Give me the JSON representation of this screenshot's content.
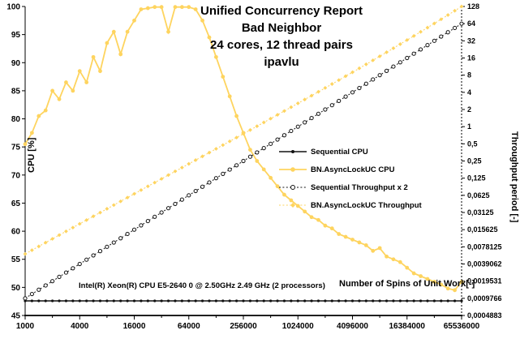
{
  "chart_data": {
    "type": "line",
    "title_lines": [
      "Unified Concurrency Report",
      "Bad Neighbor",
      "24 cores, 12 thread pairs",
      "ipavlu"
    ],
    "xlabel": "Number of Spins of Unit Work[-]",
    "ylabel_left": "CPU [%]",
    "ylabel_right": "Throughput period [-]",
    "annotation": "Intel(R) Xeon(R) CPU E5-2640 0 @ 2.50GHz  2.49 GHz  (2 processors)",
    "x_scale": "log",
    "x_range": [
      1000,
      65536000
    ],
    "y_left_range": [
      45,
      100
    ],
    "y_left_ticks": [
      45,
      50,
      55,
      60,
      65,
      70,
      75,
      80,
      85,
      90,
      95,
      100
    ],
    "y_right_ticks": [
      "128",
      "64",
      "32",
      "16",
      "8",
      "4",
      "2",
      "1",
      "0,5",
      "0,25",
      "0,125",
      "0,0625",
      "0,03125",
      "0,015625",
      "0,0078125",
      "0,0039062",
      "0,0019531",
      "0,0009766",
      "0,0004883"
    ],
    "x_ticks": [
      "1000",
      "4000",
      "16000",
      "64000",
      "256000",
      "1024000",
      "4096000",
      "16384000",
      "65536000"
    ],
    "grid": false,
    "legend_position": "middle-right",
    "colors": {
      "sequential": "#111111",
      "async": "#fed45f"
    },
    "x_values": [
      1000,
      1189,
      1414,
      1682,
      2000,
      2378,
      2828,
      3364,
      4000,
      4757,
      5657,
      6727,
      8000,
      9514,
      11314,
      13454,
      16000,
      19027,
      22627,
      26909,
      32000,
      38055,
      45255,
      53817,
      64000,
      76109,
      90510,
      107635,
      128000,
      152219,
      181019,
      215269,
      256000,
      304437,
      362039,
      430539,
      512000,
      608874,
      724077,
      861078,
      1024000,
      1217747,
      1448155,
      1722156,
      2048000,
      2435497,
      2896309,
      3444311,
      4096000,
      4870993,
      5792619,
      6888623,
      8192000,
      9741986,
      11585238,
      13777246,
      16384000,
      19483972,
      23170475,
      27554491,
      32768000,
      38967943,
      46340950,
      55108981,
      65536000
    ],
    "series": [
      {
        "name": "Sequential CPU",
        "axis": "left",
        "color": "#111111",
        "style": "solid",
        "marker": "dot",
        "values": [
          47.6,
          47.6,
          47.6,
          47.6,
          47.6,
          47.6,
          47.6,
          47.6,
          47.6,
          47.6,
          47.6,
          47.6,
          47.6,
          47.6,
          47.6,
          47.6,
          47.6,
          47.6,
          47.6,
          47.6,
          47.6,
          47.6,
          47.6,
          47.6,
          47.6,
          47.6,
          47.6,
          47.6,
          47.6,
          47.6,
          47.6,
          47.6,
          47.6,
          47.6,
          47.6,
          47.6,
          47.6,
          47.6,
          47.6,
          47.6,
          47.6,
          47.6,
          47.6,
          47.6,
          47.6,
          47.6,
          47.6,
          47.6,
          47.6,
          47.6,
          47.6,
          47.6,
          47.6,
          47.6,
          47.6,
          47.6,
          47.6,
          47.6,
          47.6,
          47.6,
          47.6,
          47.6,
          47.6,
          47.6,
          47.6
        ]
      },
      {
        "name": "BN.AsyncLockUC CPU",
        "axis": "left",
        "color": "#fed45f",
        "style": "solid",
        "marker": "dot",
        "values": [
          75.5,
          77.5,
          80.5,
          81.5,
          85,
          83.5,
          86.5,
          85,
          88.5,
          86.5,
          91,
          88.5,
          93.5,
          95.5,
          91.5,
          95.5,
          97.5,
          99.5,
          99.7,
          99.9,
          99.9,
          95.5,
          99.9,
          99.9,
          99.9,
          99.5,
          97.5,
          94.5,
          91,
          87.5,
          84,
          80.5,
          77.5,
          74.5,
          72.5,
          71,
          69.5,
          68,
          66.5,
          65.5,
          64.5,
          63.5,
          62.5,
          62,
          61,
          60.5,
          59.5,
          59,
          58.5,
          58,
          57.5,
          56.5,
          57,
          55.5,
          55,
          54.5,
          53.5,
          52.5,
          52,
          51.5,
          51,
          50.5,
          49.8,
          49.5,
          51
        ]
      },
      {
        "name": "Sequential Throughput x 2",
        "axis": "right",
        "color": "#111111",
        "style": "dotted",
        "marker": "circle-open",
        "values": [
          0.000977,
          0.001161,
          0.001381,
          0.001642,
          0.001953,
          0.002323,
          0.002762,
          0.003284,
          0.003906,
          0.004645,
          0.005524,
          0.006568,
          0.007813,
          0.00929,
          0.011049,
          0.013139,
          0.015625,
          0.018581,
          0.022097,
          0.026278,
          0.03125,
          0.037163,
          0.044194,
          0.052556,
          0.0625,
          0.074325,
          0.088388,
          0.105112,
          0.125,
          0.148651,
          0.176777,
          0.210224,
          0.25,
          0.297302,
          0.353553,
          0.420448,
          0.5,
          0.594604,
          0.707107,
          0.840896,
          1,
          1.189207,
          1.414214,
          1.681793,
          2,
          2.378414,
          2.828427,
          3.363586,
          4,
          4.756828,
          5.656854,
          6.727171,
          8,
          9.513657,
          11.313708,
          13.454343,
          16,
          19.027314,
          22.627417,
          26.908685,
          32,
          38.054628,
          45.254834,
          53.817371,
          64
        ]
      },
      {
        "name": "BN.AsyncLockUC Throughput",
        "axis": "right",
        "color": "#fed45f",
        "style": "dotted",
        "marker": "diamond",
        "values": [
          0.005862,
          0.006822,
          0.007946,
          0.00925,
          0.010772,
          0.012543,
          0.014598,
          0.016988,
          0.019775,
          0.023012,
          0.026779,
          0.031153,
          0.036255,
          0.042177,
          0.049073,
          0.057086,
          0.066406,
          0.077246,
          0.089856,
          0.104522,
          0.121582,
          0.141428,
          0.164521,
          0.191388,
          0.222656,
          0.259046,
          0.301421,
          0.350749,
          0.408203,
          0.475132,
          0.55312,
          0.644016,
          0.75,
          0.873617,
          1.017847,
          1.186204,
          1.382813,
          1.612513,
          1.881029,
          2.195033,
          2.5625,
          2.992763,
          3.496874,
          4.087693,
          4.78125,
          5.595295,
          6.551799,
          7.676455,
          9,
          10.55901,
          12.39654,
          14.5646,
          17.125,
          20.15152,
          23.73225,
          27.97295,
          33,
          38.9651,
          46.04999,
          54.47434,
          64.5,
          76.44369,
          90.68656,
          107.6873,
          128
        ]
      }
    ]
  }
}
